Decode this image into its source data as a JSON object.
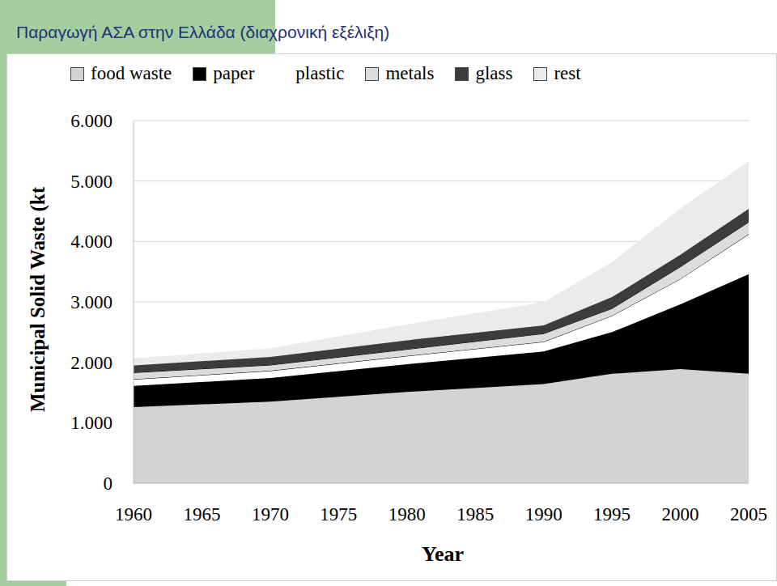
{
  "chart_data": {
    "type": "area",
    "title": "Παραγωγή ΑΣΑ στην Ελλάδα (διαχρονική εξέλιξη)",
    "x_label": "Year",
    "y_label": "Municipal Solid Waste (kt",
    "stacked": true,
    "grid": true,
    "legend": "top",
    "x": [
      1960,
      1970,
      1980,
      1990,
      1995,
      2000,
      2005
    ],
    "series": [
      {
        "name": "food waste",
        "color": "#d3d3d3",
        "values": [
          1260,
          1350,
          1510,
          1640,
          1810,
          1890,
          1810
        ]
      },
      {
        "name": "paper",
        "color": "#000000",
        "values": [
          350,
          390,
          460,
          540,
          690,
          1070,
          1650
        ]
      },
      {
        "name": "plastic",
        "color": "#ffffff",
        "values": [
          110,
          120,
          135,
          160,
          270,
          420,
          660
        ]
      },
      {
        "name": "metals",
        "color": "#dcdcdc",
        "values": [
          110,
          95,
          110,
          135,
          120,
          200,
          200
        ]
      },
      {
        "name": "glass",
        "color": "#3c3c3c",
        "values": [
          120,
          135,
          150,
          135,
          190,
          200,
          220
        ]
      },
      {
        "name": "rest",
        "color": "#ebebeb",
        "values": [
          110,
          135,
          255,
          380,
          570,
          760,
          780
        ]
      }
    ],
    "xlim": [
      1960,
      2005
    ],
    "xticks": [
      1960,
      1965,
      1970,
      1975,
      1980,
      1985,
      1990,
      1995,
      2000,
      2005
    ],
    "ylim": [
      0,
      6000
    ],
    "yticks": [
      0,
      {
        "value": 1000,
        "label": "1.000"
      },
      {
        "value": 2000,
        "label": "2.000"
      },
      {
        "value": 3000,
        "label": "3.000"
      },
      {
        "value": 4000,
        "label": "4.000"
      },
      {
        "value": 5000,
        "label": "5.000"
      },
      {
        "value": 6000,
        "label": "6.000"
      }
    ]
  }
}
